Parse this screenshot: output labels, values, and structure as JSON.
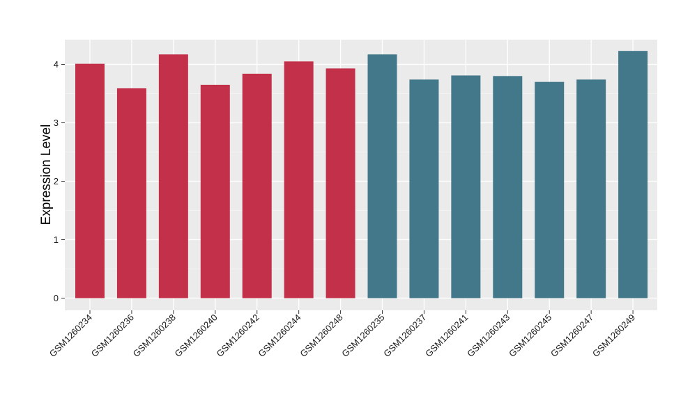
{
  "chart_data": {
    "type": "bar",
    "title": "",
    "xlabel": "",
    "ylabel": "Expression Level",
    "ylim": [
      0,
      4.4
    ],
    "yticks": [
      0,
      1,
      2,
      3,
      4
    ],
    "grid": true,
    "legend": "none",
    "colors": {
      "group_a": "#c3304a",
      "group_b": "#42788a",
      "panel_background": "#ebebeb",
      "grid_major": "#ffffff",
      "grid_minor": "#f5f5f5"
    },
    "categories": [
      "GSM1260234",
      "GSM1260236",
      "GSM1260238",
      "GSM1260240",
      "GSM1260242",
      "GSM1260244",
      "GSM1260248",
      "GSM1260235",
      "GSM1260237",
      "GSM1260241",
      "GSM1260243",
      "GSM1260245",
      "GSM1260247",
      "GSM1260249"
    ],
    "values": [
      4.01,
      3.59,
      4.17,
      3.65,
      3.84,
      4.05,
      3.93,
      4.17,
      3.74,
      3.81,
      3.8,
      3.7,
      3.74,
      4.23
    ],
    "bar_colors": [
      "#c3304a",
      "#c3304a",
      "#c3304a",
      "#c3304a",
      "#c3304a",
      "#c3304a",
      "#c3304a",
      "#42788a",
      "#42788a",
      "#42788a",
      "#42788a",
      "#42788a",
      "#42788a",
      "#42788a"
    ]
  }
}
